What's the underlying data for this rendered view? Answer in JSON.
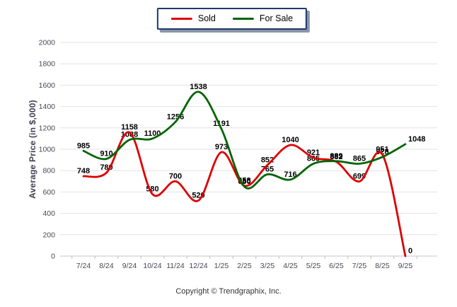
{
  "legend": {
    "items": [
      {
        "id": "sold",
        "label": "Sold",
        "color": "#dd0000"
      },
      {
        "id": "for-sale",
        "label": "For Sale",
        "color": "#006400"
      }
    ]
  },
  "chart_data": {
    "type": "line",
    "title": "",
    "categories": [
      "7/24",
      "8/24",
      "9/24",
      "10/24",
      "11/24",
      "12/24",
      "1/25",
      "2/25",
      "3/25",
      "4/25",
      "5/25",
      "6/25",
      "7/25",
      "8/25",
      "9/25"
    ],
    "series": [
      {
        "name": "Sold",
        "color": "#dd0000",
        "values": [
          748,
          780,
          1158,
          580,
          700,
          520,
          973,
          658,
          852,
          1040,
          921,
          882,
          699,
          951,
          0
        ]
      },
      {
        "name": "For Sale",
        "color": "#006400",
        "values": [
          985,
          910,
          1088,
          1100,
          1256,
          1538,
          1191,
          650,
          765,
          716,
          865,
          889,
          865,
          928,
          1048
        ]
      }
    ],
    "xlabel": "",
    "ylabel": "Average Price (in $,000)",
    "ylim": [
      0,
      2000
    ],
    "ytick_step": 200,
    "grid": "horizontal",
    "legend_position": "top-center",
    "point_labels": true,
    "curve": "smooth-spline"
  },
  "footer": {
    "copyright": "Copyright © Trendgraphix, Inc."
  },
  "colors": {
    "sold": "#dd0000",
    "for_sale": "#006400",
    "grid_line": "#e2e2e2",
    "baseline": "#c6c6c6",
    "tick_text": "#474756",
    "axis_title": "#3f3f54",
    "point_label": "#000000",
    "legend_border": "#1c3a68",
    "footer_text": "#333333"
  }
}
